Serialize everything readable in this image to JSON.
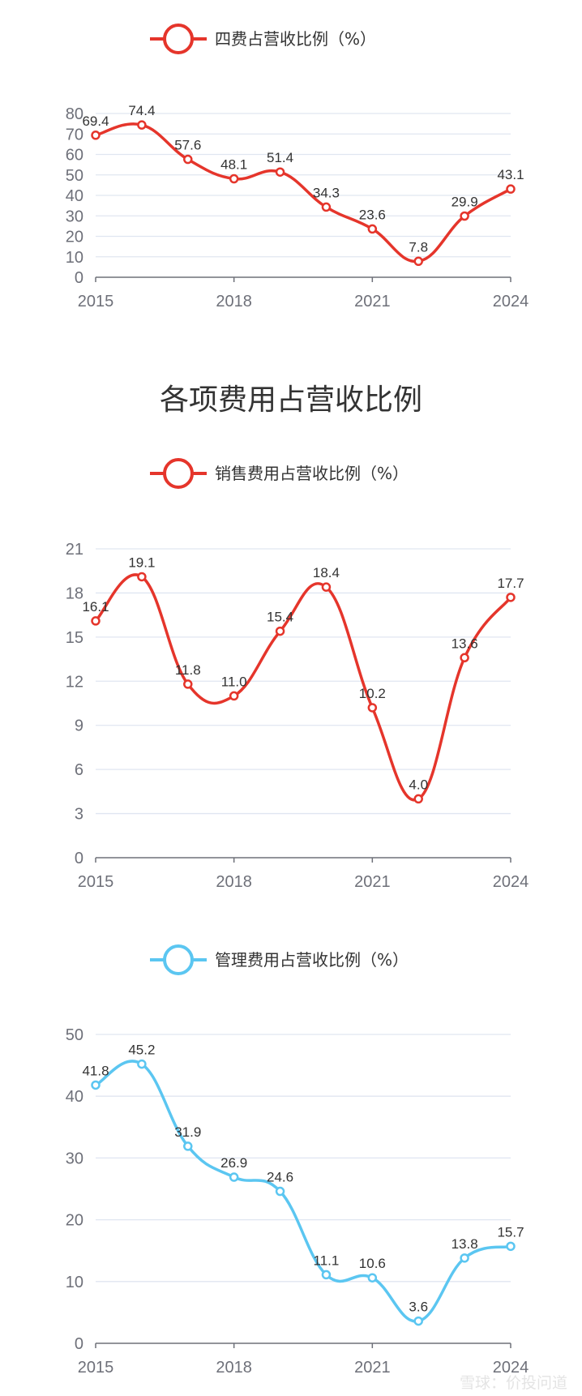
{
  "section_title": "各项费用占营收比例",
  "watermark": "雪球：价投问道",
  "colors": {
    "red": "#e5352b",
    "blue": "#5bc6f1",
    "grid": "#e0e6f1",
    "axis": "#6e7079"
  },
  "chart_data": [
    {
      "type": "line",
      "legend": "四费占营收比例（%）",
      "color": "#e5352b",
      "smooth": true,
      "x": [
        2015,
        2016,
        2017,
        2018,
        2019,
        2020,
        2021,
        2022,
        2023,
        2024
      ],
      "values": [
        69.4,
        74.4,
        57.6,
        48.1,
        51.4,
        34.3,
        23.6,
        7.8,
        29.9,
        43.1
      ],
      "labels": [
        "69.4",
        "74.4",
        "57.6",
        "48.1",
        "51.4",
        "34.3",
        "23.6",
        "7.8",
        "29.9",
        "43.1"
      ],
      "xticks": [
        "2015",
        "2018",
        "2021",
        "2024"
      ],
      "yticks": [
        "0",
        "10",
        "20",
        "30",
        "40",
        "50",
        "60",
        "70",
        "80"
      ],
      "ylim": [
        0,
        80
      ],
      "legend_position": "top-center",
      "grid": true
    },
    {
      "type": "line",
      "legend": "销售费用占营收比例（%）",
      "color": "#e5352b",
      "smooth": true,
      "x": [
        2015,
        2016,
        2017,
        2018,
        2019,
        2020,
        2021,
        2022,
        2023,
        2024
      ],
      "values": [
        16.1,
        19.1,
        11.8,
        11.0,
        15.4,
        18.4,
        10.2,
        4.0,
        13.6,
        17.7
      ],
      "labels": [
        "16.1",
        "19.1",
        "11.8",
        "11.0",
        "15.4",
        "18.4",
        "10.2",
        "4.0",
        "13.6",
        "17.7"
      ],
      "xticks": [
        "2015",
        "2018",
        "2021",
        "2024"
      ],
      "yticks": [
        "0",
        "3",
        "6",
        "9",
        "12",
        "15",
        "18",
        "21"
      ],
      "ylim": [
        0,
        21
      ],
      "legend_position": "top-center",
      "grid": true
    },
    {
      "type": "line",
      "legend": "管理费用占营收比例（%）",
      "color": "#5bc6f1",
      "smooth": true,
      "x": [
        2015,
        2016,
        2017,
        2018,
        2019,
        2020,
        2021,
        2022,
        2023,
        2024
      ],
      "values": [
        41.8,
        45.2,
        31.9,
        26.9,
        24.6,
        11.1,
        10.6,
        3.6,
        13.8,
        15.7
      ],
      "labels": [
        "41.8",
        "45.2",
        "31.9",
        "26.9",
        "24.6",
        "11.1",
        "10.6",
        "3.6",
        "13.8",
        "15.7"
      ],
      "xticks": [
        "2015",
        "2018",
        "2021",
        "2024"
      ],
      "yticks": [
        "0",
        "10",
        "20",
        "30",
        "40",
        "50"
      ],
      "ylim": [
        0,
        50
      ],
      "legend_position": "top-center",
      "grid": true
    }
  ]
}
